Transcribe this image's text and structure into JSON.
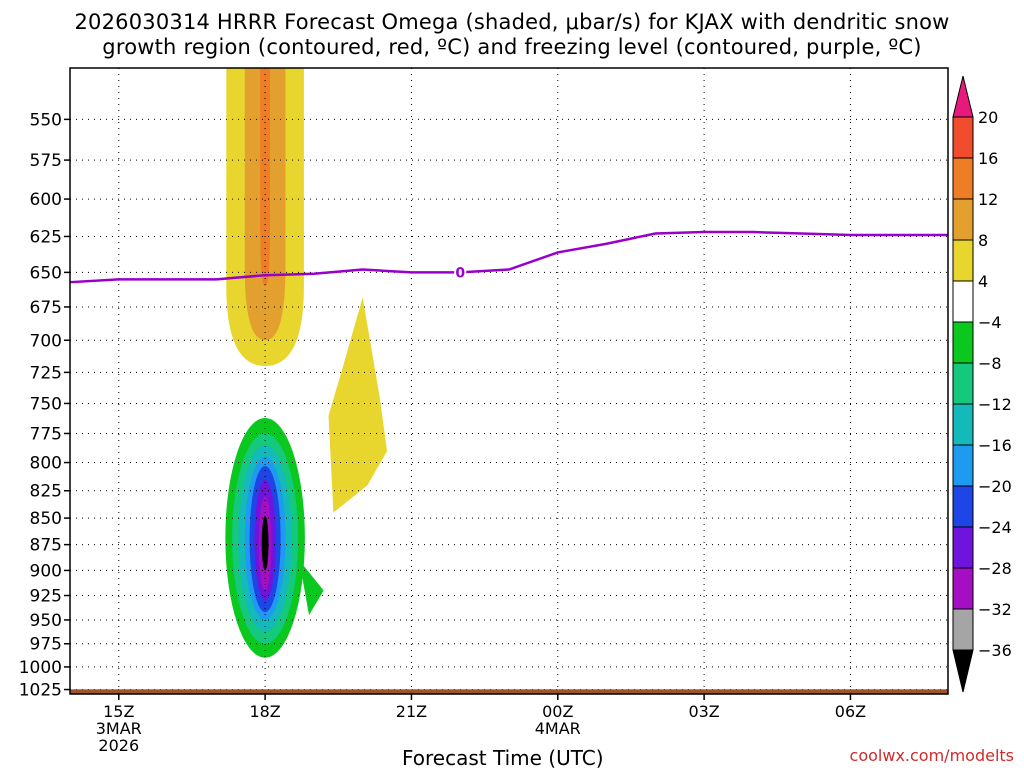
{
  "title_line1": "2026030314 HRRR Forecast Omega (shaded, μbar/s) for KJAX with dendritic snow",
  "title_line2": "growth region (contoured, red, ºC) and freezing level (contoured, purple, ºC)",
  "credit": "coolwx.com/modelts",
  "chart_data": {
    "type": "heatmap",
    "title": "2026030314 HRRR Forecast Omega (shaded, μbar/s) for KJAX with dendritic snow growth region (contoured, red, ºC) and freezing level (contoured, purple, ºC)",
    "xlabel": "Forecast Time (UTC)",
    "ylabel": "",
    "x_tick_labels": [
      {
        "hour": 15,
        "lines": [
          "15Z",
          "3MAR",
          "2026"
        ]
      },
      {
        "hour": 18,
        "lines": [
          "18Z"
        ]
      },
      {
        "hour": 21,
        "lines": [
          "21Z"
        ]
      },
      {
        "hour": 24,
        "lines": [
          "00Z",
          "4MAR"
        ]
      },
      {
        "hour": 27,
        "lines": [
          "03Z"
        ]
      },
      {
        "hour": 30,
        "lines": [
          "06Z"
        ]
      }
    ],
    "xlim_hours": [
      14,
      32
    ],
    "y_ticks_hpa": [
      550,
      575,
      600,
      625,
      650,
      675,
      700,
      725,
      750,
      775,
      800,
      825,
      850,
      875,
      900,
      925,
      950,
      975,
      1000,
      1025
    ],
    "ylim_hpa": [
      520,
      1030
    ],
    "y_scale": "log-pressure (inverted)",
    "grid": true,
    "colorbar": {
      "placement": "right",
      "tick_labels": [
        "20",
        "16",
        "12",
        "8",
        "4",
        "−4",
        "−8",
        "−12",
        "−16",
        "−20",
        "−24",
        "−28",
        "−32",
        "−36"
      ],
      "levels": [
        {
          "from": 20,
          "to": null,
          "color": "#e8197d"
        },
        {
          "from": 16,
          "to": 20,
          "color": "#f24c2e"
        },
        {
          "from": 12,
          "to": 16,
          "color": "#ee7d26"
        },
        {
          "from": 8,
          "to": 12,
          "color": "#e3a02f"
        },
        {
          "from": 4,
          "to": 8,
          "color": "#e8d62e"
        },
        {
          "from": -4,
          "to": 4,
          "color": "#ffffff"
        },
        {
          "from": -8,
          "to": -4,
          "color": "#0ac81e"
        },
        {
          "from": -12,
          "to": -8,
          "color": "#14c87d"
        },
        {
          "from": -16,
          "to": -12,
          "color": "#14b9b9"
        },
        {
          "from": -20,
          "to": -16,
          "color": "#1e9bf0"
        },
        {
          "from": -24,
          "to": -20,
          "color": "#1e46e6"
        },
        {
          "from": -28,
          "to": -24,
          "color": "#6e14dc"
        },
        {
          "from": -32,
          "to": -28,
          "color": "#a50fc3"
        },
        {
          "from": -36,
          "to": -32,
          "color": "#a5a5a5"
        },
        {
          "from": null,
          "to": -36,
          "color": "#000000"
        }
      ]
    },
    "omega_features": [
      {
        "name": "rising motion core",
        "center_hour": 18.0,
        "top_hpa": 750,
        "bottom_hpa": 1008,
        "core_pressure_hpa": 875,
        "min_value": -36,
        "levels": [
          -4,
          -8,
          -12,
          -16,
          -20,
          -24,
          -28,
          -32,
          -36
        ]
      },
      {
        "name": "sinking motion column",
        "center_hour": 18.0,
        "top_hpa": 520,
        "bottom_hpa": 720,
        "max_value": 16,
        "levels": [
          4,
          8,
          12
        ]
      },
      {
        "name": "secondary sinking plume",
        "center_hour": 19.8,
        "top_hpa": 668,
        "bottom_hpa": 845,
        "max_value": 8,
        "levels": [
          4
        ]
      }
    ],
    "freezing_level": {
      "color": "#9900cc",
      "label": "0",
      "label_hour": 22.0,
      "points": [
        [
          14,
          657
        ],
        [
          15,
          655
        ],
        [
          17,
          655
        ],
        [
          18,
          652
        ],
        [
          19,
          651
        ],
        [
          20,
          648
        ],
        [
          21,
          650
        ],
        [
          22,
          650
        ],
        [
          23,
          648
        ],
        [
          24,
          636
        ],
        [
          25,
          630
        ],
        [
          26,
          623
        ],
        [
          27,
          622
        ],
        [
          28,
          622
        ],
        [
          29,
          623
        ],
        [
          30,
          624
        ],
        [
          31,
          624
        ],
        [
          32,
          624
        ]
      ]
    },
    "terrain": {
      "color": "#a0522d",
      "surface_pressure_hpa": 1027
    }
  }
}
